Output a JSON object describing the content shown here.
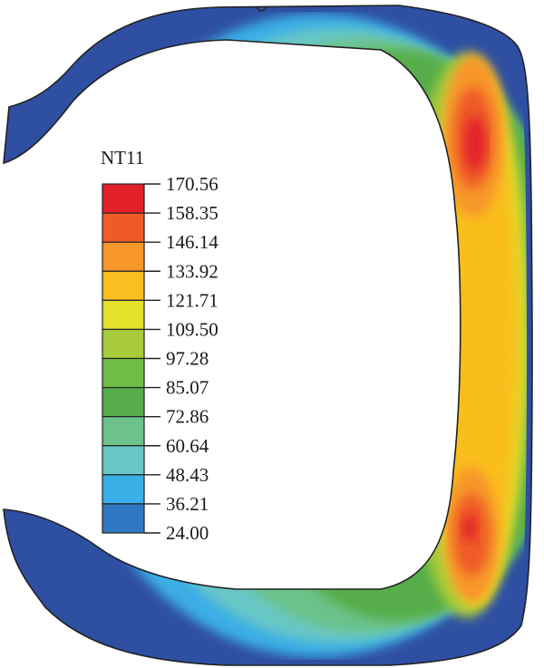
{
  "legend": {
    "title": "NT11",
    "levels": [
      "170.56",
      "158.35",
      "146.14",
      "133.92",
      "121.71",
      "109.50",
      "97.28",
      "85.07",
      "72.86",
      "60.64",
      "48.43",
      "36.21",
      "24.00"
    ],
    "colors": [
      "#e2202a",
      "#ef5a27",
      "#f7962a",
      "#f9be1f",
      "#e4e02b",
      "#a7cb3b",
      "#72bd45",
      "#56ad4a",
      "#6cc28a",
      "#67c7c6",
      "#3aaee6",
      "#2f77c2",
      "#2f4fa3"
    ]
  },
  "tire_colors": {
    "outline": "#222222",
    "outer": "#2f4fa3",
    "cool": "#3aaee6",
    "teal": "#67c7c6",
    "mint": "#6cc28a",
    "green": "#56ad4a",
    "lime": "#a7cb3b",
    "yellow": "#e4e02b",
    "gold": "#f9be1f",
    "orange": "#f7962a",
    "redorange": "#ef5a27",
    "red": "#e2202a"
  }
}
